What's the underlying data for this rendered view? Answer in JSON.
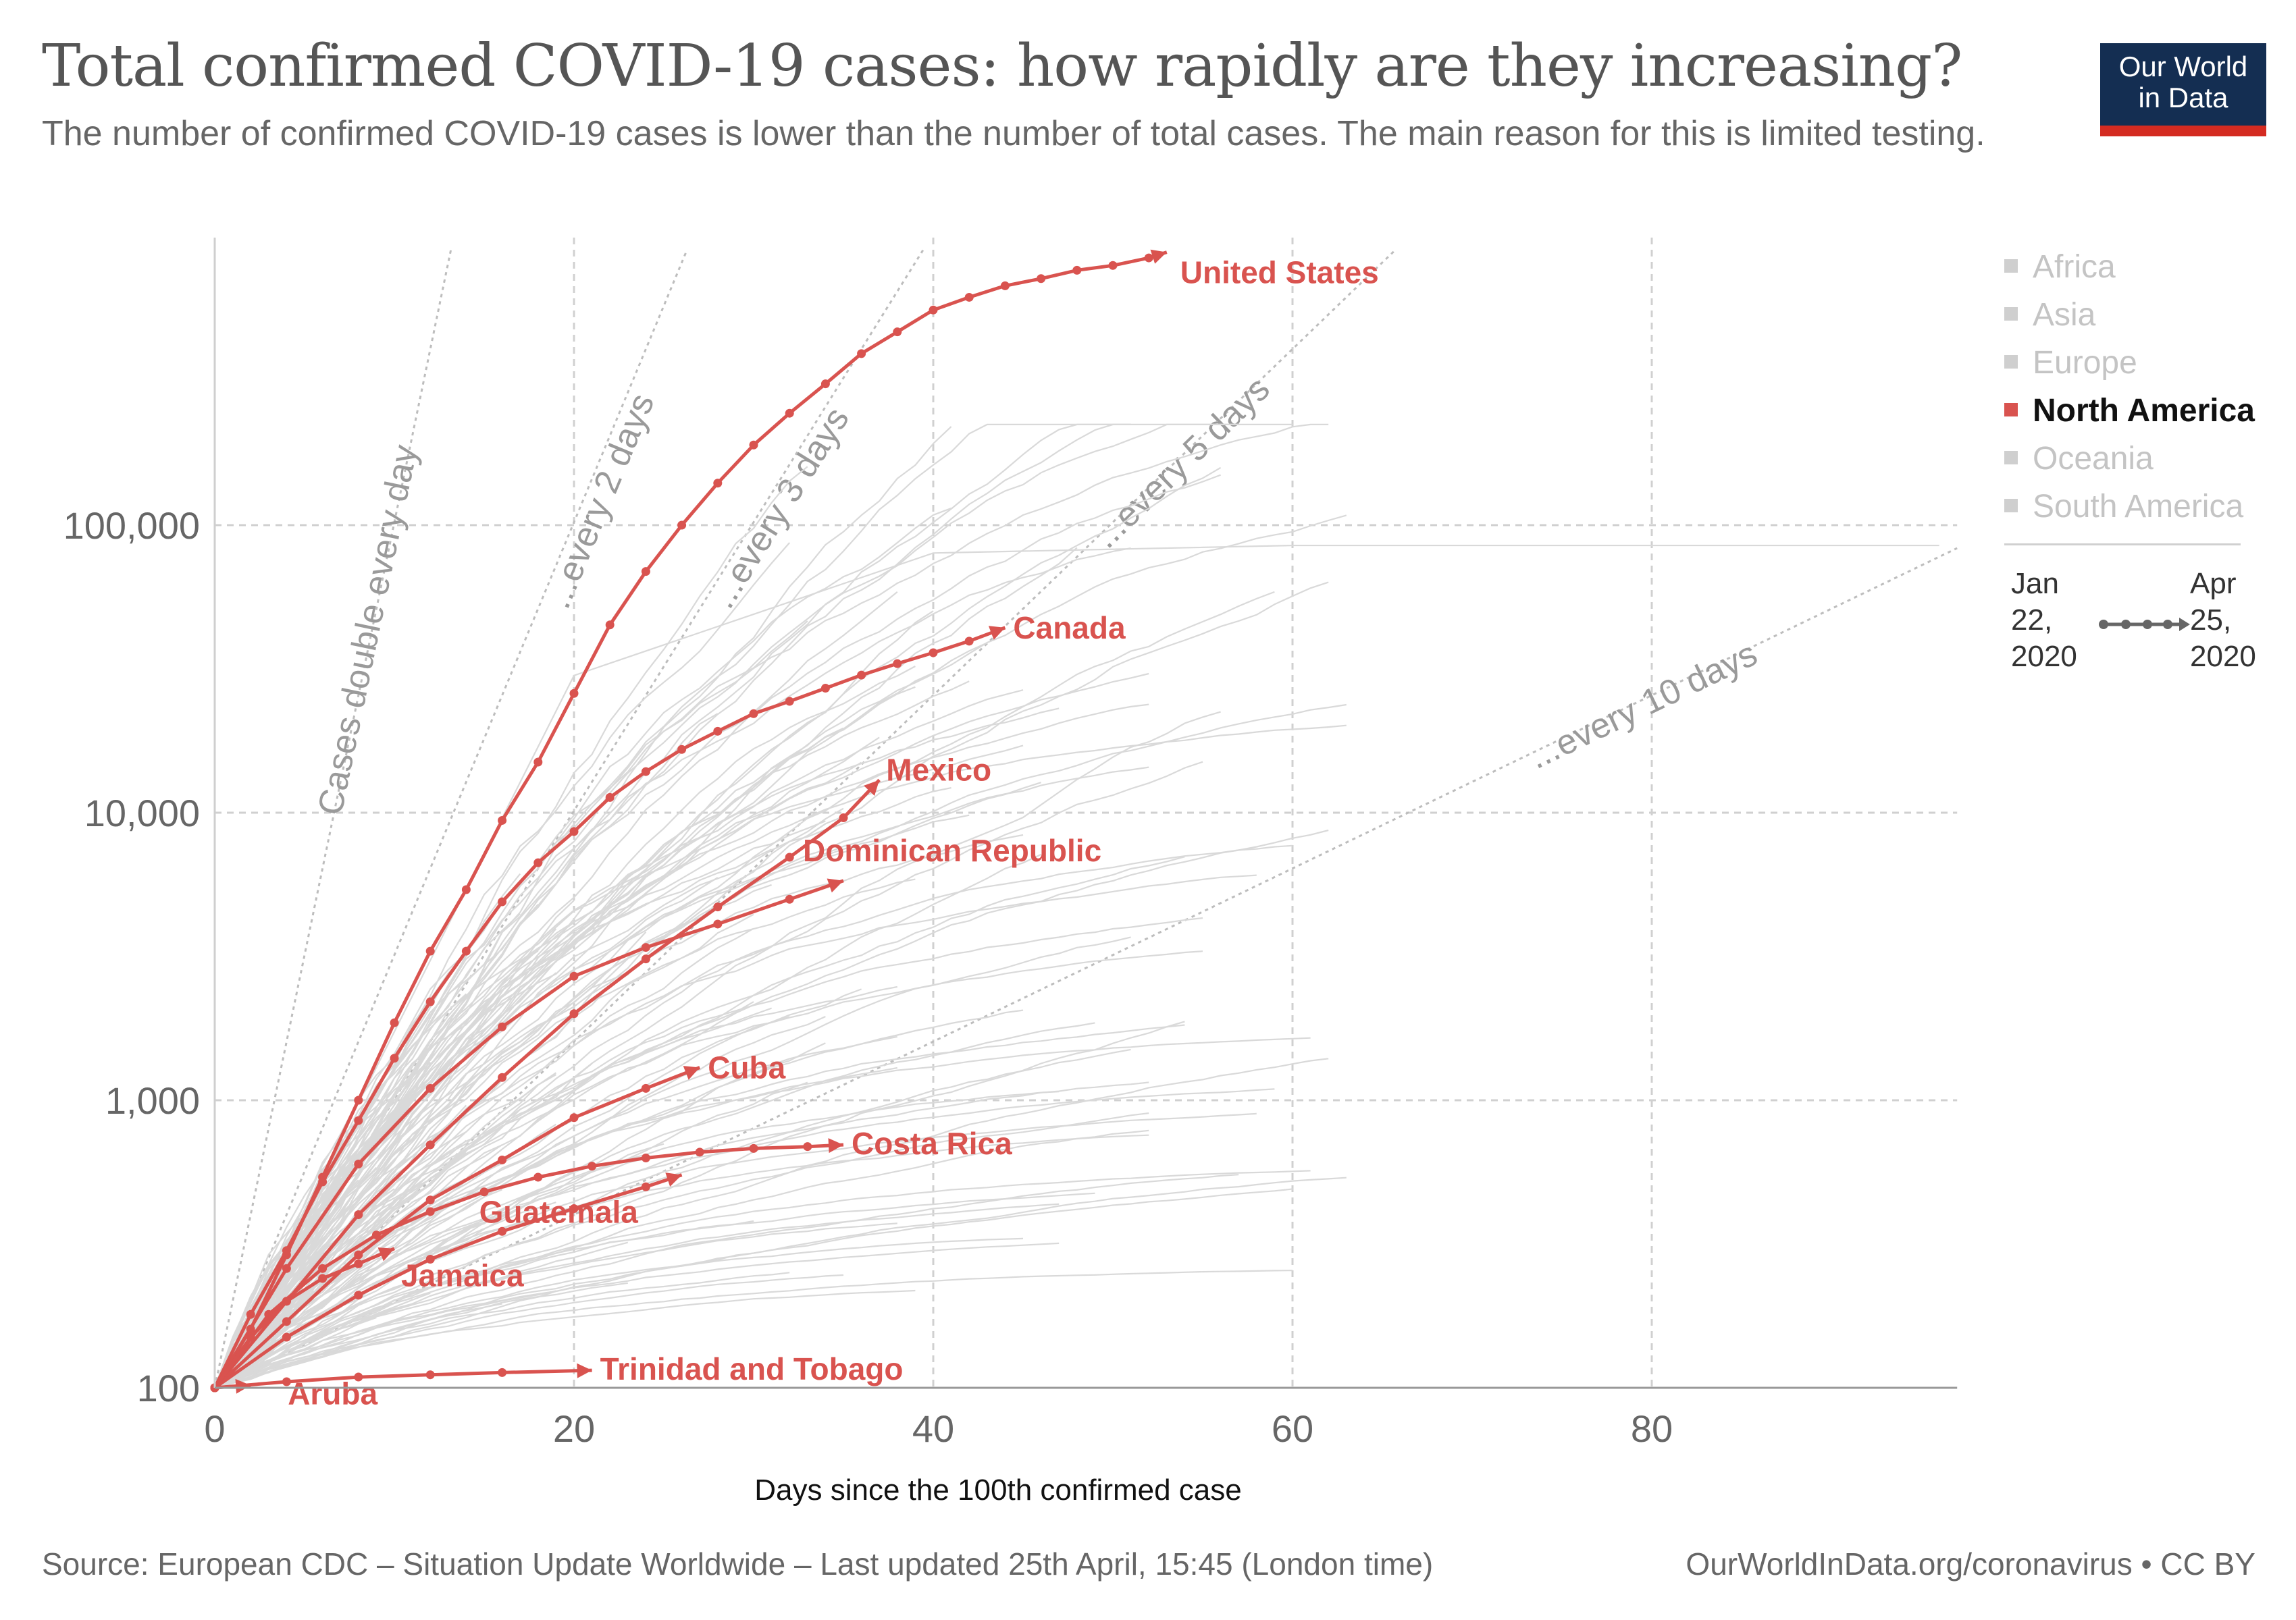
{
  "header": {
    "title": "Total confirmed COVID-19 cases: how rapidly are they increasing?",
    "subtitle": "The number of confirmed COVID-19 cases is lower than the number of total cases. The main reason for this is limited testing.",
    "logo_text": "Our World\nin Data"
  },
  "footer": {
    "source": "Source: European CDC – Situation Update Worldwide – Last updated 25th April, 15:45 (London time)",
    "url": "OurWorldInData.org/coronavirus • CC BY"
  },
  "legend": {
    "items": [
      {
        "label": "Africa",
        "active": false
      },
      {
        "label": "Asia",
        "active": false
      },
      {
        "label": "Europe",
        "active": false
      },
      {
        "label": "North America",
        "active": true
      },
      {
        "label": "Oceania",
        "active": false
      },
      {
        "label": "South America",
        "active": false
      }
    ],
    "time_start": "Jan\n22,\n2020",
    "time_end": "Apr\n25,\n2020"
  },
  "colors": {
    "highlight": "#d9534f",
    "background_lines": "#d9d9d9",
    "grid": "#d0d0d0",
    "reference": "#bdbdbd",
    "axis_text": "#666666"
  },
  "chart_data": {
    "type": "line",
    "xlabel": "Days since the 100th confirmed case",
    "x_ticks": [
      0,
      20,
      40,
      60,
      80
    ],
    "y_ticks": [
      100,
      1000,
      10000,
      100000
    ],
    "y_tick_labels": [
      "100",
      "1,000",
      "10,000",
      "100,000"
    ],
    "xlim": [
      0,
      97
    ],
    "ylim": [
      100,
      1000000
    ],
    "y_scale": "log",
    "grid": true,
    "reference_lines": [
      {
        "label": "Cases double every day",
        "doubling_days": 1
      },
      {
        "label": "...every 2 days",
        "doubling_days": 2
      },
      {
        "label": "...every 3 days",
        "doubling_days": 3
      },
      {
        "label": "...every 5 days",
        "doubling_days": 5
      },
      {
        "label": "...every 10 days",
        "doubling_days": 10
      }
    ],
    "series": [
      {
        "name": "United States",
        "x": [
          0,
          2,
          4,
          6,
          8,
          10,
          12,
          14,
          16,
          18,
          20,
          22,
          24,
          26,
          28,
          30,
          32,
          34,
          36,
          38,
          40,
          42,
          44,
          46,
          48,
          50,
          52,
          53
        ],
        "y": [
          100,
          160,
          290,
          540,
          1000,
          1860,
          3300,
          5400,
          9400,
          15000,
          26000,
          45000,
          69000,
          100000,
          140000,
          190000,
          245000,
          310000,
          395000,
          470000,
          560000,
          620000,
          680000,
          720000,
          770000,
          800000,
          850000,
          890000
        ]
      },
      {
        "name": "Canada",
        "x": [
          0,
          2,
          4,
          6,
          8,
          10,
          12,
          14,
          16,
          18,
          20,
          22,
          24,
          26,
          28,
          30,
          32,
          34,
          36,
          38,
          40,
          42,
          44
        ],
        "y": [
          100,
          180,
          300,
          520,
          850,
          1400,
          2200,
          3300,
          4900,
          6700,
          8600,
          11300,
          13900,
          16600,
          19200,
          22100,
          24400,
          27100,
          30100,
          33000,
          36000,
          39500,
          44000
        ]
      },
      {
        "name": "Mexico",
        "x": [
          0,
          4,
          8,
          12,
          16,
          20,
          24,
          28,
          32,
          35,
          37
        ],
        "y": [
          100,
          200,
          400,
          700,
          1200,
          2000,
          3100,
          4700,
          7000,
          9600,
          13000
        ]
      },
      {
        "name": "Dominican Republic",
        "x": [
          0,
          4,
          8,
          12,
          16,
          20,
          24,
          28,
          32,
          35
        ],
        "y": [
          100,
          260,
          600,
          1100,
          1800,
          2700,
          3400,
          4100,
          5000,
          5800
        ]
      },
      {
        "name": "Cuba",
        "x": [
          0,
          4,
          8,
          12,
          16,
          20,
          24,
          27
        ],
        "y": [
          100,
          170,
          290,
          450,
          620,
          870,
          1100,
          1300
        ]
      },
      {
        "name": "Costa Rica",
        "x": [
          0,
          3,
          6,
          9,
          12,
          15,
          18,
          21,
          24,
          27,
          30,
          33,
          35
        ],
        "y": [
          100,
          180,
          260,
          340,
          410,
          480,
          540,
          590,
          630,
          660,
          680,
          690,
          700
        ]
      },
      {
        "name": "Guatemala",
        "x": [
          0,
          4,
          8,
          12,
          16,
          20,
          24,
          26
        ],
        "y": [
          100,
          150,
          210,
          280,
          350,
          420,
          500,
          550
        ]
      },
      {
        "name": "Jamaica",
        "x": [
          0,
          2,
          4,
          6,
          8,
          10
        ],
        "y": [
          100,
          150,
          200,
          240,
          270,
          305
        ]
      },
      {
        "name": "Trinidad and Tobago",
        "x": [
          0,
          4,
          8,
          12,
          16,
          21
        ],
        "y": [
          100,
          105,
          109,
          111,
          113,
          115
        ]
      },
      {
        "name": "Aruba",
        "x": [
          0,
          2
        ],
        "y": [
          100,
          102
        ]
      }
    ]
  }
}
